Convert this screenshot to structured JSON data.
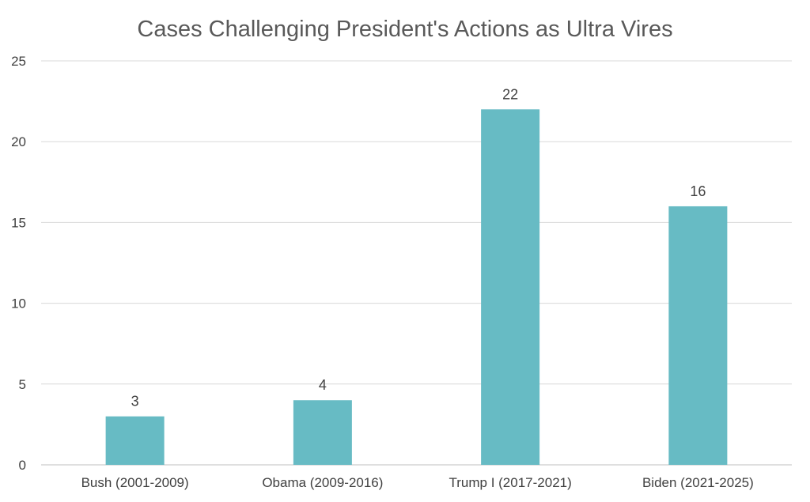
{
  "chart_data": {
    "type": "bar",
    "title": "Cases Challenging President's Actions as Ultra Vires",
    "categories": [
      "Bush (2001-2009)",
      "Obama (2009-2016)",
      "Trump I (2017-2021)",
      "Biden (2021-2025)"
    ],
    "values": [
      3,
      4,
      22,
      16
    ],
    "data_labels": [
      "3",
      "4",
      "22",
      "16"
    ],
    "ylim": [
      0,
      25
    ],
    "yticks": [
      "0",
      "5",
      "10",
      "15",
      "20",
      "25"
    ],
    "xlabel": "",
    "ylabel": "",
    "grid": true,
    "legend": "none",
    "bar_color": "#67bbc4"
  }
}
